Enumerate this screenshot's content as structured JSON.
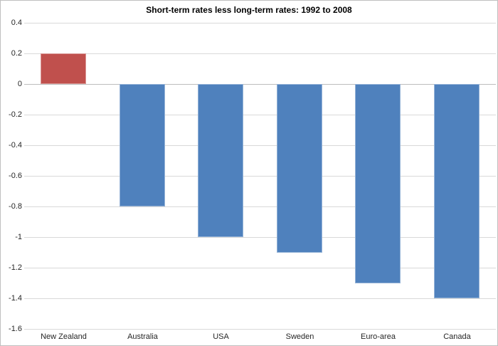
{
  "chart_data": {
    "type": "bar",
    "title": "Short-term rates less long-term rates: 1992 to 2008",
    "xlabel": "",
    "ylabel": "",
    "categories": [
      "New Zealand",
      "Australia",
      "USA",
      "Sweden",
      "Euro-area",
      "Canada"
    ],
    "values": [
      0.2,
      -0.8,
      -1.0,
      -1.1,
      -1.3,
      -1.4
    ],
    "bar_fill_colors": [
      "#C0504D",
      "#4F81BD",
      "#4F81BD",
      "#4F81BD",
      "#4F81BD",
      "#4F81BD"
    ],
    "bar_edge_colors": [
      "#D99694",
      "#95B3D7",
      "#95B3D7",
      "#95B3D7",
      "#95B3D7",
      "#95B3D7"
    ],
    "ylim": [
      -1.6,
      0.4
    ],
    "ytick_step": 0.2,
    "ytick_labels": [
      "0.4",
      "0.2",
      "0",
      "-0.2",
      "-0.4",
      "-0.6",
      "-0.8",
      "-1",
      "-1.2",
      "-1.4",
      "-1.6"
    ],
    "grid": "horizontal",
    "gridline_color": "#D9D9D9",
    "zero_line_color": "#BDBDBD",
    "legend_position": "none",
    "plot_background": "#FFFFFF",
    "chart_border_color": "#BFBFBF"
  }
}
